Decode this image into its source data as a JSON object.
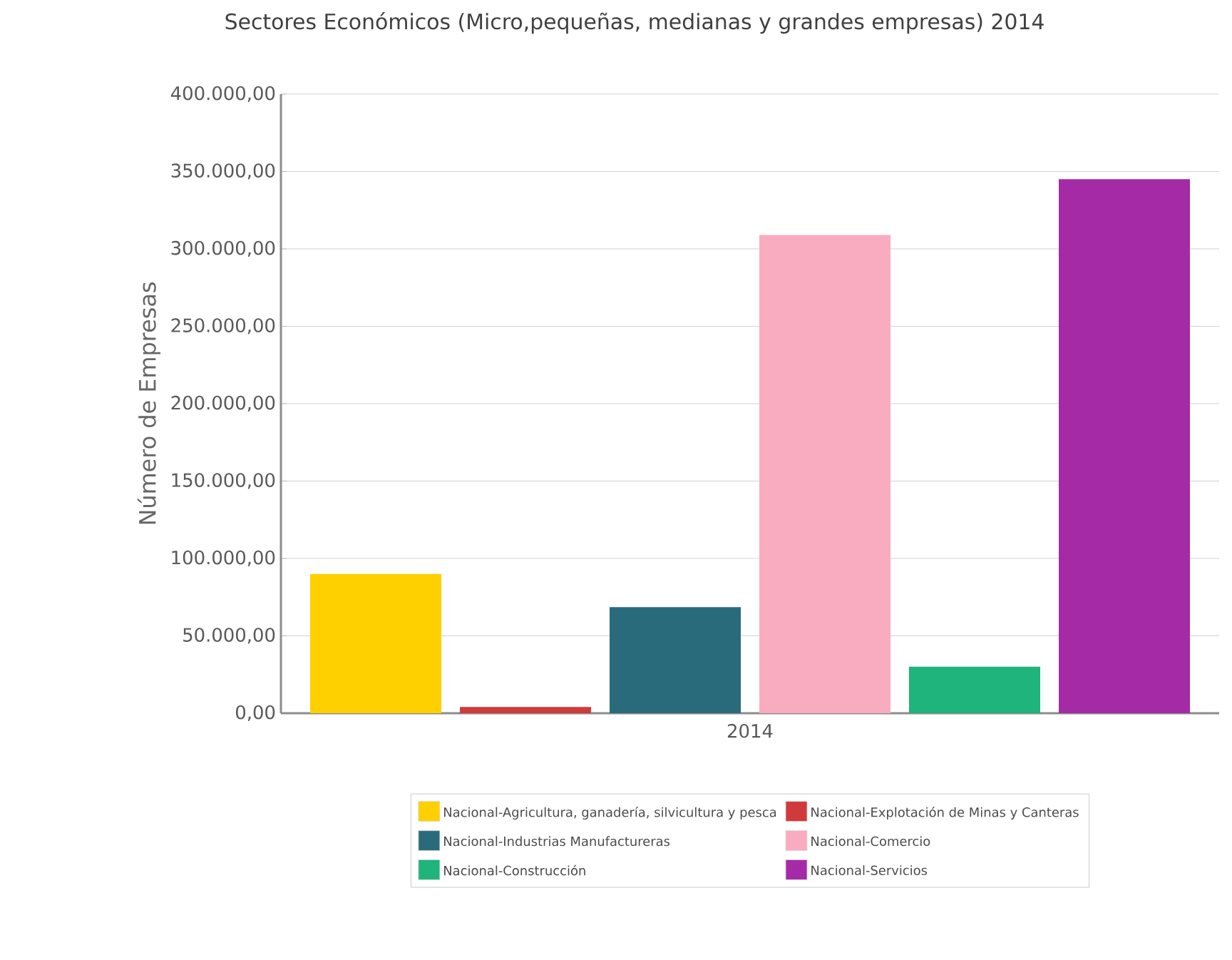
{
  "chart_data": {
    "type": "bar",
    "title": "Sectores Económicos (Micro,pequeñas, medianas y grandes empresas) 2014",
    "ylabel": "Número de Empresas",
    "categories": [
      "2014"
    ],
    "series": [
      {
        "name": "Nacional-Agricultura, ganadería, silvicultura y pesca",
        "color": "#ffd000",
        "values": [
          90000
        ]
      },
      {
        "name": "Nacional-Explotación de Minas y Canteras",
        "color": "#d03a3a",
        "values": [
          4000
        ]
      },
      {
        "name": "Nacional-Industrias Manufactureras",
        "color": "#2a6b7b",
        "values": [
          68500
        ]
      },
      {
        "name": "Nacional-Comercio",
        "color": "#f9abbf",
        "values": [
          309000
        ]
      },
      {
        "name": "Nacional-Construcción",
        "color": "#1eb47c",
        "values": [
          30000
        ]
      },
      {
        "name": "Nacional-Servicios",
        "color": "#a52aa5",
        "values": [
          345000
        ]
      }
    ],
    "ylim": [
      0,
      400000
    ],
    "yticks": [
      {
        "value": 0,
        "label": "0,00"
      },
      {
        "value": 50000,
        "label": "50.000,00"
      },
      {
        "value": 100000,
        "label": "100.000,00"
      },
      {
        "value": 150000,
        "label": "150.000,00"
      },
      {
        "value": 200000,
        "label": "200.000,00"
      },
      {
        "value": 250000,
        "label": "250.000,00"
      },
      {
        "value": 300000,
        "label": "300.000,00"
      },
      {
        "value": 350000,
        "label": "350.000,00"
      },
      {
        "value": 400000,
        "label": "400.000,00"
      }
    ],
    "grid": "y",
    "legend": "bottom"
  }
}
